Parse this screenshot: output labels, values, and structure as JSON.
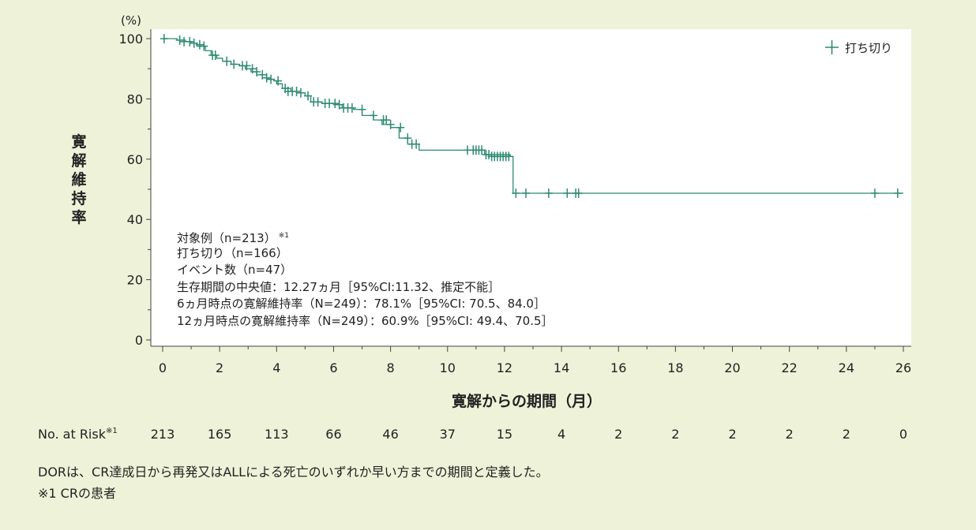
{
  "chart_data": {
    "type": "line",
    "title": "",
    "ylabel": "寛解維持率",
    "y_unit": "(%)",
    "xlabel": "寛解からの期間（月）",
    "xlim": [
      0,
      26
    ],
    "ylim": [
      0,
      100
    ],
    "x_ticks": [
      0,
      2,
      4,
      6,
      8,
      10,
      12,
      14,
      16,
      18,
      20,
      22,
      24,
      26
    ],
    "y_ticks": [
      0,
      20,
      40,
      60,
      80,
      100
    ],
    "legend": {
      "label": "打ち切り",
      "position": "top-right"
    },
    "line_color": "#2d8a72",
    "series": [
      {
        "step_x": [
          0,
          0.5,
          0.8,
          1.0,
          1.2,
          1.5,
          1.7,
          1.9,
          2.1,
          2.4,
          2.7,
          2.9,
          3.1,
          3.3,
          3.5,
          3.7,
          3.9,
          4.0,
          4.2,
          4.5,
          4.7,
          5.0,
          5.2,
          5.6,
          6.0,
          6.3,
          6.7,
          7.0,
          7.4,
          7.7,
          8.0,
          8.3,
          8.6,
          9.0,
          10.7,
          11.0,
          11.3,
          12.2,
          12.3,
          26.0
        ],
        "step_y": [
          100,
          99.5,
          99.0,
          98.5,
          97.5,
          96.0,
          94.5,
          93.5,
          92.5,
          91.5,
          91.0,
          90.0,
          89.0,
          88.0,
          87.0,
          86.5,
          86.0,
          85.0,
          83.5,
          82.5,
          82.0,
          81.0,
          79.0,
          78.5,
          78.1,
          77.0,
          76.5,
          74.5,
          73.0,
          71.5,
          70.5,
          67.0,
          65.0,
          63.0,
          63.0,
          63.0,
          61.5,
          60.9,
          48.7,
          48.7
        ]
      }
    ],
    "censor_marks": [
      {
        "x": 0.05,
        "y": 100
      },
      {
        "x": 0.6,
        "y": 99.5
      },
      {
        "x": 0.75,
        "y": 99.0
      },
      {
        "x": 0.95,
        "y": 99.0
      },
      {
        "x": 1.1,
        "y": 98.5
      },
      {
        "x": 1.3,
        "y": 98.0
      },
      {
        "x": 1.45,
        "y": 97.5
      },
      {
        "x": 1.75,
        "y": 94.5
      },
      {
        "x": 1.85,
        "y": 94.5
      },
      {
        "x": 2.25,
        "y": 92.5
      },
      {
        "x": 2.5,
        "y": 91.5
      },
      {
        "x": 2.8,
        "y": 91.0
      },
      {
        "x": 2.95,
        "y": 91.0
      },
      {
        "x": 3.15,
        "y": 90.0
      },
      {
        "x": 3.3,
        "y": 89.0
      },
      {
        "x": 3.5,
        "y": 88.0
      },
      {
        "x": 3.65,
        "y": 87.0
      },
      {
        "x": 3.8,
        "y": 86.5
      },
      {
        "x": 4.05,
        "y": 86.0
      },
      {
        "x": 4.3,
        "y": 83.5
      },
      {
        "x": 4.4,
        "y": 82.5
      },
      {
        "x": 4.55,
        "y": 82.5
      },
      {
        "x": 4.7,
        "y": 82.5
      },
      {
        "x": 4.85,
        "y": 82.0
      },
      {
        "x": 5.1,
        "y": 81.0
      },
      {
        "x": 5.3,
        "y": 79.0
      },
      {
        "x": 5.45,
        "y": 79.0
      },
      {
        "x": 5.7,
        "y": 78.5
      },
      {
        "x": 5.85,
        "y": 78.5
      },
      {
        "x": 6.05,
        "y": 78.5
      },
      {
        "x": 6.2,
        "y": 78.1
      },
      {
        "x": 6.35,
        "y": 77.0
      },
      {
        "x": 6.5,
        "y": 77.0
      },
      {
        "x": 6.65,
        "y": 77.0
      },
      {
        "x": 7.0,
        "y": 76.5
      },
      {
        "x": 7.4,
        "y": 74.5
      },
      {
        "x": 7.75,
        "y": 73.0
      },
      {
        "x": 7.85,
        "y": 73.0
      },
      {
        "x": 8.0,
        "y": 71.5
      },
      {
        "x": 8.35,
        "y": 70.5
      },
      {
        "x": 8.6,
        "y": 67.0
      },
      {
        "x": 8.75,
        "y": 65.0
      },
      {
        "x": 8.9,
        "y": 65.0
      },
      {
        "x": 10.7,
        "y": 63.0
      },
      {
        "x": 10.9,
        "y": 63.0
      },
      {
        "x": 11.0,
        "y": 63.0
      },
      {
        "x": 11.1,
        "y": 63.0
      },
      {
        "x": 11.2,
        "y": 63.0
      },
      {
        "x": 11.35,
        "y": 61.5
      },
      {
        "x": 11.45,
        "y": 61.5
      },
      {
        "x": 11.55,
        "y": 60.9
      },
      {
        "x": 11.65,
        "y": 60.9
      },
      {
        "x": 11.75,
        "y": 60.9
      },
      {
        "x": 11.85,
        "y": 60.9
      },
      {
        "x": 11.95,
        "y": 60.9
      },
      {
        "x": 12.05,
        "y": 60.9
      },
      {
        "x": 12.15,
        "y": 60.9
      },
      {
        "x": 12.4,
        "y": 48.7
      },
      {
        "x": 12.75,
        "y": 48.7
      },
      {
        "x": 13.55,
        "y": 48.7
      },
      {
        "x": 14.2,
        "y": 48.7
      },
      {
        "x": 14.5,
        "y": 48.7
      },
      {
        "x": 14.6,
        "y": 48.7
      },
      {
        "x": 25.0,
        "y": 48.7
      },
      {
        "x": 25.8,
        "y": 48.7
      }
    ],
    "risk_table": {
      "label": "No. at Risk",
      "label_sup": "※1",
      "values": [
        "213",
        "165",
        "113",
        "66",
        "46",
        "37",
        "15",
        "4",
        "2",
        "2",
        "2",
        "2",
        "2",
        "0"
      ]
    }
  },
  "annotation": [
    {
      "text": "対象例（n=213）",
      "sup": "※1"
    },
    {
      "text": "打ち切り（n=166）",
      "sup": ""
    },
    {
      "text": "イベント数（n=47）",
      "sup": ""
    },
    {
      "text": "生存期間の中央値：12.27ヵ月［95%CI:11.32、推定不能］",
      "sup": ""
    },
    {
      "text": "6ヵ月時点の寛解維持率（N=249）：78.1%［95%CI: 70.5、84.0］",
      "sup": ""
    },
    {
      "text": "12ヵ月時点の寛解維持率（N=249）：60.9%［95%CI: 49.4、70.5］",
      "sup": ""
    }
  ],
  "footnotes": [
    "DORは、CR達成日から再発又はALLによる死亡のいずれか早い方までの期間と定義した。",
    "※1 CRの患者"
  ]
}
